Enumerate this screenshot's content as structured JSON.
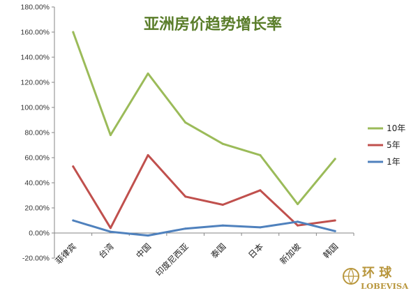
{
  "chart_data": {
    "type": "line",
    "title": "亚洲房价趋势增长率",
    "title_color": "#5a7d2a",
    "categories": [
      "菲律宾",
      "台湾",
      "中国",
      "印度尼西亚",
      "泰国",
      "日本",
      "新加坡",
      "韩国"
    ],
    "series": [
      {
        "name": "10年",
        "color": "#9bbb59",
        "values": [
          160.0,
          78.0,
          127.0,
          88.0,
          71.0,
          62.0,
          23.0,
          59.0
        ]
      },
      {
        "name": "5年",
        "color": "#c0504d",
        "values": [
          53.0,
          4.0,
          62.0,
          29.0,
          22.5,
          34.0,
          6.0,
          10.0
        ]
      },
      {
        "name": "1年",
        "color": "#4f81bd",
        "values": [
          10.0,
          1.0,
          -2.0,
          3.5,
          6.0,
          4.5,
          9.0,
          1.5
        ]
      }
    ],
    "ylim": [
      -20,
      180
    ],
    "ytick_step": 20,
    "ytick_labels": [
      "-20.00%",
      "0.00%",
      "20.00%",
      "40.00%",
      "60.00%",
      "80.00%",
      "100.00%",
      "120.00%",
      "140.00%",
      "160.00%",
      "180.00%"
    ],
    "xlabel": "",
    "ylabel": "",
    "grid": false,
    "legend_position": "right"
  },
  "watermark": {
    "text_cn": "环 球",
    "text_en": "LOBEVISA",
    "color": "#b8963c"
  }
}
